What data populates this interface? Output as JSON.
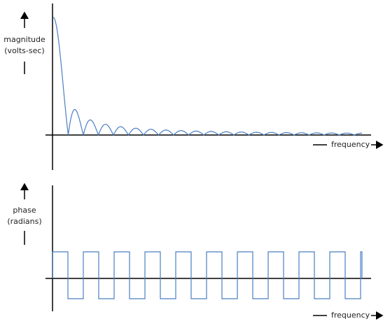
{
  "magnitude_plot": {
    "y_label": [
      "magnitude",
      "(volts-sec)"
    ],
    "x_label": "frequency"
  },
  "phase_plot": {
    "y_label": [
      "phase",
      "(radians)"
    ],
    "x_label": "frequency"
  }
}
